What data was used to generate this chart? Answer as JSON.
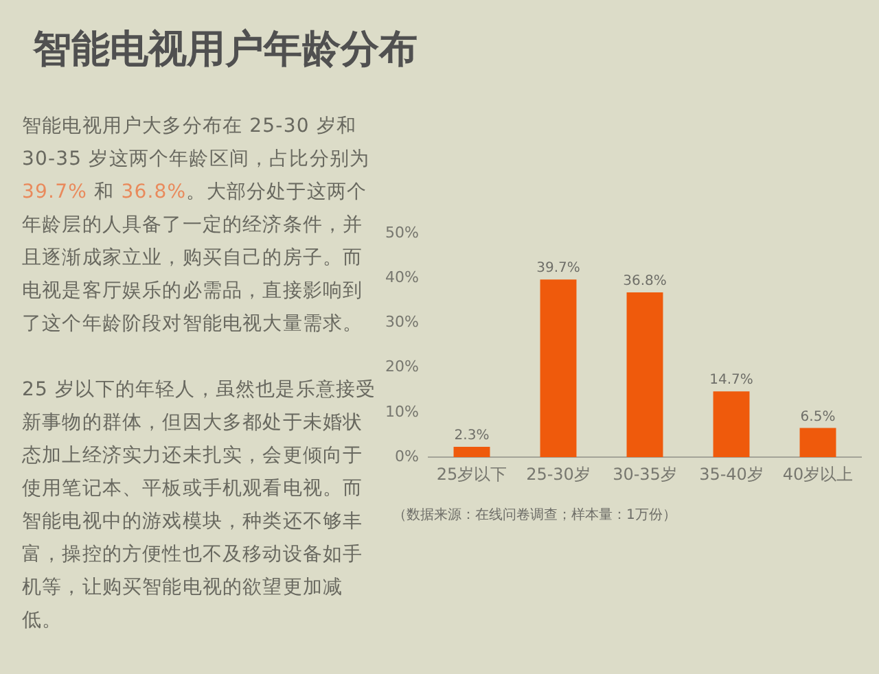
{
  "chart_data": {
    "type": "bar",
    "title": "智能电视用户年龄分布",
    "annotations": [
      "智能电视用户大多分布在 25-30 岁和 30-35 岁这两个年龄区间，占比分别为 39.7% 和 36.8%。大部分处于这两个年龄层的人具备了一定的经济条件，并且逐渐成家立业，购买自己的房子。而电视是客厅娱乐的必需品，直接影响到了这个年龄阶段对智能电视大量需求。",
      "25 岁以下的年轻人，虽然也是乐意接受新事物的群体，但因大多都处于未婚状态加上经济实力还未扎实，会更倾向于使用笔记本、平板或手机观看电视。而智能电视中的游戏模块，种类还不够丰富，操控的方便性也不及移动设备如手机等，让购买智能电视的欲望更加减低。",
      "（数据来源：在线问卷调查；样本量：1万份）"
    ],
    "categories": [
      "25岁以下",
      "25-30岁",
      "30-35岁",
      "35-40岁",
      "40岁以上"
    ],
    "values": [
      2.3,
      39.7,
      36.8,
      14.7,
      6.5
    ],
    "color": "#ef5a0c",
    "value_labels": [
      "2.3%",
      "39.7%",
      "36.8%",
      "14.7%",
      "6.5%"
    ],
    "ylim": [
      0,
      50
    ],
    "yticks": [
      {
        "value": 0,
        "label": "0%"
      },
      {
        "value": 10,
        "label": "10%"
      },
      {
        "value": 20,
        "label": "20%"
      },
      {
        "value": 30,
        "label": "30%"
      },
      {
        "value": 40,
        "label": "40%"
      },
      {
        "value": 50,
        "label": "50%"
      }
    ]
  }
}
